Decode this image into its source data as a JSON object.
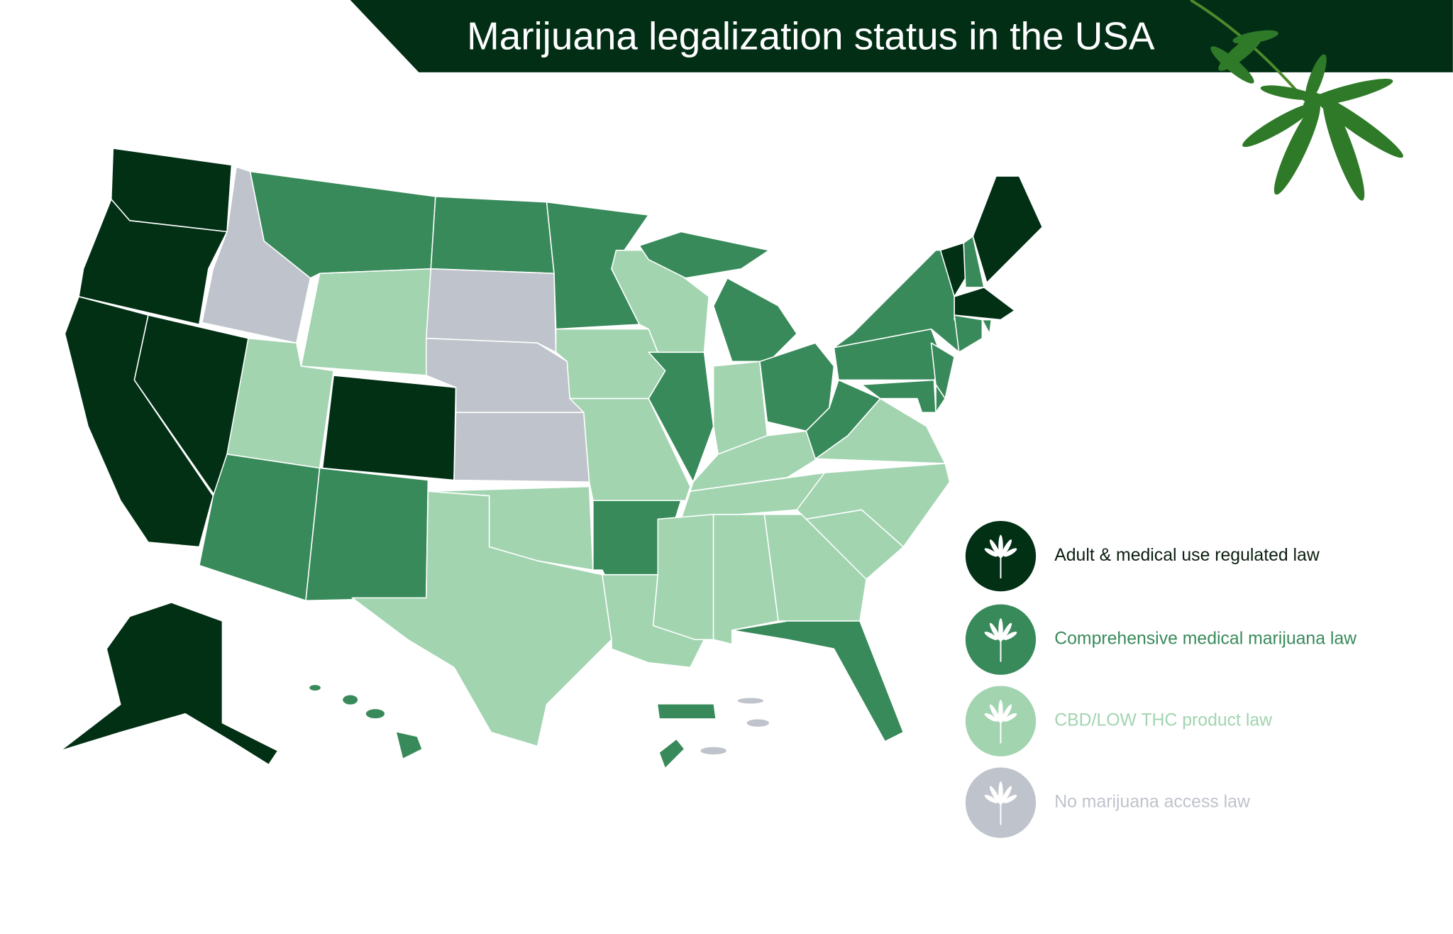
{
  "header": {
    "title": "Marijuana legalization status in the USA"
  },
  "legend": [
    {
      "label": "Adult & medical use regulated law",
      "color": "#023015"
    },
    {
      "label": "Comprehensive medical marijuana law",
      "color": "#388a5a"
    },
    {
      "label": "CBD/LOW THC product law",
      "color": "#a2d4b0"
    },
    {
      "label": "No marijuana access law",
      "color": "#bfc3cb"
    }
  ]
}
